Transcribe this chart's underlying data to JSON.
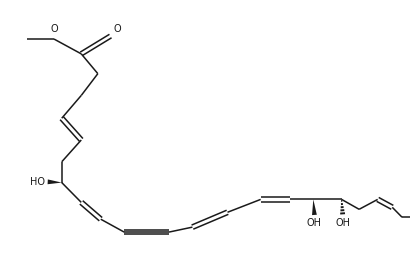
{
  "bg_color": "#ffffff",
  "line_color": "#1a1a1a",
  "line_width": 1.1,
  "font_size": 7.0,
  "figsize": [
    4.17,
    2.8
  ],
  "dpi": 100,
  "xlim": [
    -0.5,
    10.5
  ],
  "ylim": [
    0.5,
    8.0
  ]
}
